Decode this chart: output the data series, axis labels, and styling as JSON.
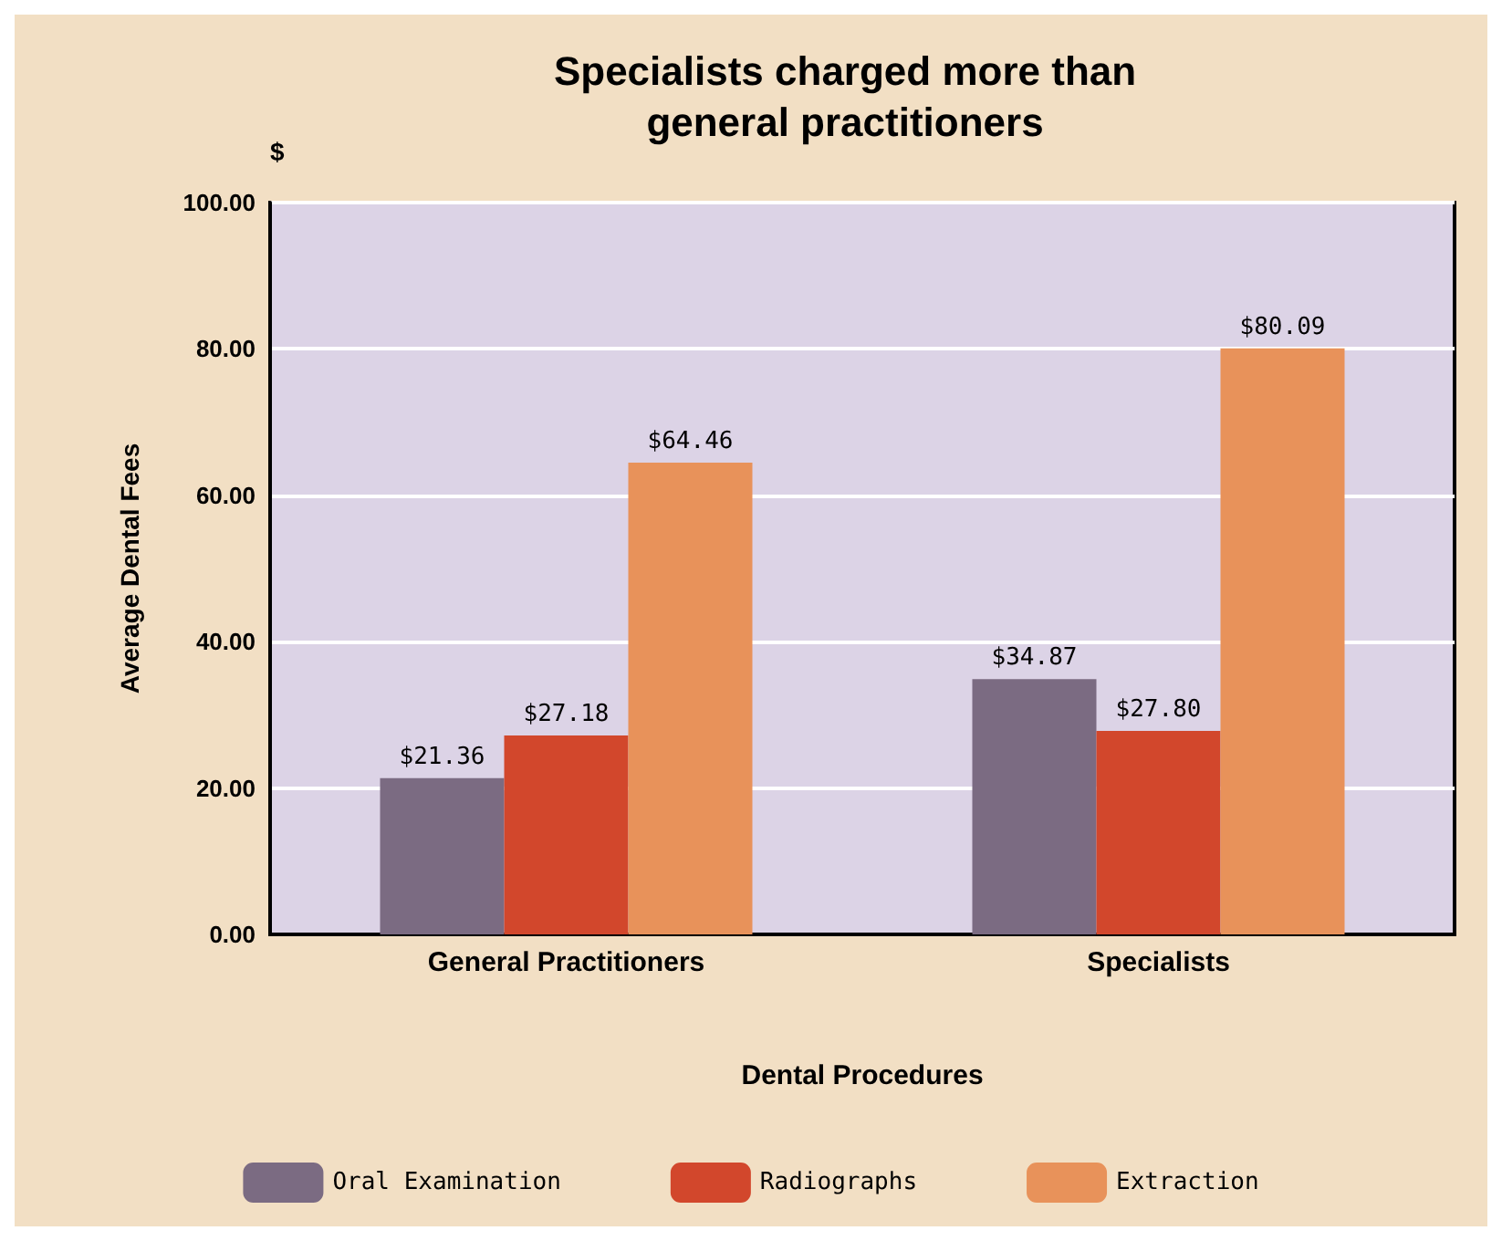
{
  "chart_data": {
    "type": "bar",
    "title": "Specialists charged more than\ngeneral practitioners",
    "categories": [
      "General Practitioners",
      "Specialists"
    ],
    "series": [
      {
        "name": "Oral Examination",
        "color": "#7b6b82",
        "values": [
          21.36,
          34.87
        ],
        "value_labels": [
          "$21.36",
          "$34.87"
        ]
      },
      {
        "name": "Radiographs",
        "color": "#d2472c",
        "values": [
          27.18,
          27.8
        ],
        "value_labels": [
          "$27.18",
          "$27.80"
        ]
      },
      {
        "name": "Extraction",
        "color": "#e8925a",
        "values": [
          64.46,
          80.09
        ],
        "value_labels": [
          "$64.46",
          "$80.09"
        ]
      }
    ],
    "ylim": [
      0,
      100
    ],
    "yticks": [
      {
        "value": 0,
        "label": "0.00"
      },
      {
        "value": 20,
        "label": "20.00"
      },
      {
        "value": 40,
        "label": "40.00"
      },
      {
        "value": 60,
        "label": "60.00"
      },
      {
        "value": 80,
        "label": "80.00"
      },
      {
        "value": 100,
        "label": "100.00"
      }
    ],
    "xlabel": "Dental Procedures",
    "ylabel": "Average Dental Fees",
    "annotations": [
      "$"
    ],
    "grid": "y",
    "legend": "bottom"
  }
}
